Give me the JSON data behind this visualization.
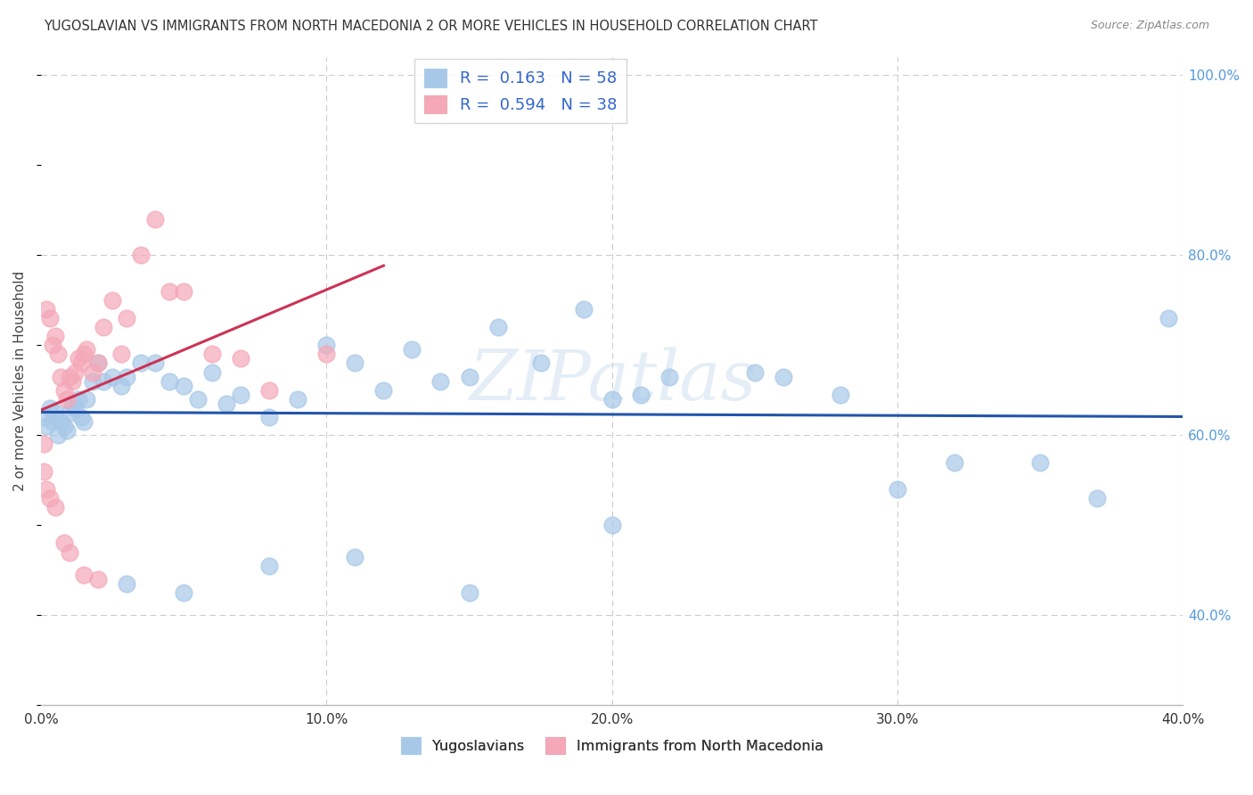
{
  "title": "YUGOSLAVIAN VS IMMIGRANTS FROM NORTH MACEDONIA 2 OR MORE VEHICLES IN HOUSEHOLD CORRELATION CHART",
  "source": "Source: ZipAtlas.com",
  "ylabel_label": "2 or more Vehicles in Household",
  "legend_label1": "Yugoslavians",
  "legend_label2": "Immigrants from North Macedonia",
  "blue_color": "#a8c8e8",
  "pink_color": "#f4a8b8",
  "blue_line_color": "#2255aa",
  "pink_line_color": "#cc3355",
  "watermark": "ZIPatlas",
  "background_color": "#ffffff",
  "grid_color": "#cccccc",
  "xlim": [
    0.0,
    0.4
  ],
  "ylim": [
    0.3,
    1.02
  ],
  "x_ticks": [
    0.0,
    0.1,
    0.2,
    0.3,
    0.4
  ],
  "x_tick_labels": [
    "0.0%",
    "10.0%",
    "20.0%",
    "30.0%",
    "40.0%"
  ],
  "y_ticks": [
    0.4,
    0.6,
    0.8,
    1.0
  ],
  "y_tick_labels": [
    "40.0%",
    "60.0%",
    "80.0%",
    "100.0%"
  ],
  "legend_r_blue": "R =  0.163",
  "legend_n_blue": "N = 58",
  "legend_r_pink": "R =  0.594",
  "legend_n_pink": "N = 38",
  "blue_points_x": [
    0.001,
    0.002,
    0.003,
    0.004,
    0.005,
    0.006,
    0.007,
    0.008,
    0.009,
    0.01,
    0.011,
    0.012,
    0.013,
    0.014,
    0.015,
    0.016,
    0.018,
    0.02,
    0.022,
    0.025,
    0.028,
    0.03,
    0.035,
    0.04,
    0.045,
    0.05,
    0.055,
    0.06,
    0.065,
    0.07,
    0.08,
    0.09,
    0.1,
    0.11,
    0.12,
    0.13,
    0.14,
    0.15,
    0.16,
    0.175,
    0.19,
    0.2,
    0.21,
    0.22,
    0.25,
    0.26,
    0.28,
    0.3,
    0.32,
    0.35,
    0.37,
    0.395,
    0.03,
    0.05,
    0.08,
    0.11,
    0.15,
    0.2
  ],
  "blue_points_y": [
    0.62,
    0.61,
    0.63,
    0.615,
    0.625,
    0.6,
    0.615,
    0.61,
    0.605,
    0.625,
    0.635,
    0.63,
    0.64,
    0.62,
    0.615,
    0.64,
    0.66,
    0.68,
    0.66,
    0.665,
    0.655,
    0.665,
    0.68,
    0.68,
    0.66,
    0.655,
    0.64,
    0.67,
    0.635,
    0.645,
    0.62,
    0.64,
    0.7,
    0.68,
    0.65,
    0.695,
    0.66,
    0.665,
    0.72,
    0.68,
    0.74,
    0.64,
    0.645,
    0.665,
    0.67,
    0.665,
    0.645,
    0.54,
    0.57,
    0.57,
    0.53,
    0.73,
    0.435,
    0.425,
    0.455,
    0.465,
    0.425,
    0.5
  ],
  "pink_points_x": [
    0.001,
    0.002,
    0.003,
    0.004,
    0.005,
    0.006,
    0.007,
    0.008,
    0.009,
    0.01,
    0.011,
    0.012,
    0.013,
    0.014,
    0.015,
    0.016,
    0.018,
    0.02,
    0.022,
    0.025,
    0.028,
    0.03,
    0.035,
    0.04,
    0.045,
    0.05,
    0.06,
    0.07,
    0.08,
    0.1,
    0.001,
    0.002,
    0.003,
    0.005,
    0.008,
    0.01,
    0.015,
    0.02
  ],
  "pink_points_y": [
    0.59,
    0.74,
    0.73,
    0.7,
    0.71,
    0.69,
    0.665,
    0.65,
    0.64,
    0.665,
    0.66,
    0.67,
    0.685,
    0.68,
    0.69,
    0.695,
    0.67,
    0.68,
    0.72,
    0.75,
    0.69,
    0.73,
    0.8,
    0.84,
    0.76,
    0.76,
    0.69,
    0.685,
    0.65,
    0.69,
    0.56,
    0.54,
    0.53,
    0.52,
    0.48,
    0.47,
    0.445,
    0.44
  ],
  "pink_line_x_start": 0.0,
  "pink_line_x_end": 0.12,
  "blue_line_x_start": 0.0,
  "blue_line_x_end": 0.4
}
